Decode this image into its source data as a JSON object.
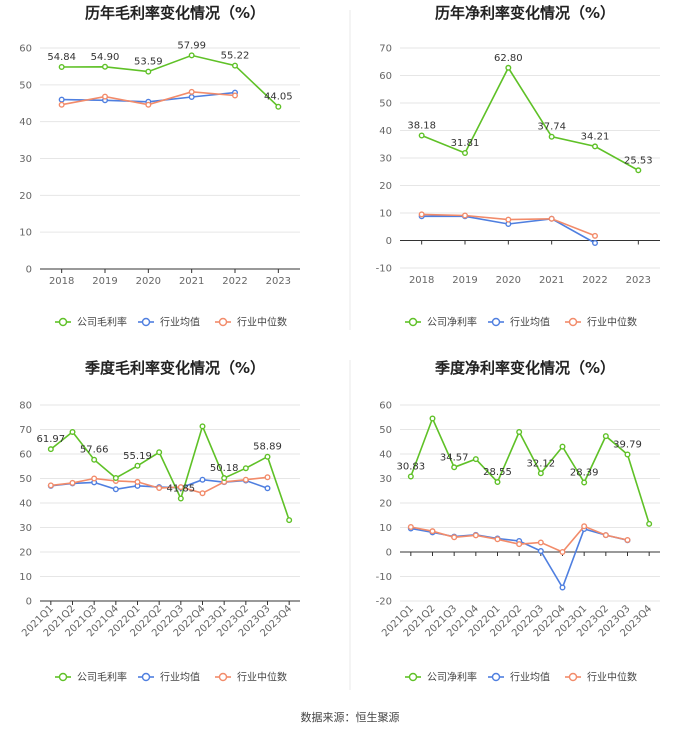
{
  "colors": {
    "company": "#5fc127",
    "avg": "#4f7fe0",
    "median": "#f28b6a"
  },
  "source": "数据来源：恒生聚源",
  "chart_data": [
    {
      "type": "line",
      "title": "历年毛利率变化情况（%）",
      "categories": [
        "2018",
        "2019",
        "2020",
        "2021",
        "2022",
        "2023"
      ],
      "ylim": [
        0,
        60
      ],
      "yticks": [
        0,
        10,
        20,
        30,
        40,
        50,
        60
      ],
      "grid": true,
      "legend": "bottom",
      "series": [
        {
          "name": "公司毛利率",
          "color": "#5fc127",
          "values": [
            54.84,
            54.9,
            53.59,
            57.99,
            55.22,
            44.05
          ],
          "labels": [
            "54.84",
            "54.90",
            "53.59",
            "57.99",
            "55.22",
            "44.05"
          ]
        },
        {
          "name": "行业均值",
          "color": "#4f7fe0",
          "values": [
            46.0,
            45.8,
            45.4,
            46.7,
            47.9,
            null
          ]
        },
        {
          "name": "行业中位数",
          "color": "#f28b6a",
          "values": [
            44.6,
            46.8,
            44.6,
            48.1,
            47.1,
            null
          ]
        }
      ]
    },
    {
      "type": "line",
      "title": "历年净利率变化情况（%）",
      "categories": [
        "2018",
        "2019",
        "2020",
        "2021",
        "2022",
        "2023"
      ],
      "ylim": [
        -10,
        70
      ],
      "yticks": [
        -10,
        0,
        10,
        20,
        30,
        40,
        50,
        60,
        70
      ],
      "grid": true,
      "legend": "bottom",
      "series": [
        {
          "name": "公司净利率",
          "color": "#5fc127",
          "values": [
            38.18,
            31.81,
            62.8,
            37.74,
            34.21,
            25.53
          ],
          "labels": [
            "38.18",
            "31.81",
            "62.80",
            "37.74",
            "34.21",
            "25.53"
          ]
        },
        {
          "name": "行业均值",
          "color": "#4f7fe0",
          "values": [
            8.8,
            8.8,
            6.0,
            7.9,
            -0.9,
            null
          ]
        },
        {
          "name": "行业中位数",
          "color": "#f28b6a",
          "values": [
            9.5,
            9.1,
            7.6,
            7.9,
            1.7,
            null
          ]
        }
      ]
    },
    {
      "type": "line",
      "title": "季度毛利率变化情况（%）",
      "categories": [
        "2021Q1",
        "2021Q2",
        "2021Q3",
        "2021Q4",
        "2022Q1",
        "2022Q2",
        "2022Q3",
        "2022Q4",
        "2023Q1",
        "2023Q2",
        "2023Q3",
        "2023Q4"
      ],
      "ylim": [
        0,
        80
      ],
      "yticks": [
        0,
        10,
        20,
        30,
        40,
        50,
        60,
        70,
        80
      ],
      "grid": true,
      "legend": "bottom",
      "series": [
        {
          "name": "公司毛利率",
          "color": "#5fc127",
          "values": [
            61.97,
            69.0,
            57.66,
            50.2,
            55.19,
            60.7,
            41.85,
            71.3,
            50.18,
            54.2,
            58.89,
            33.0
          ],
          "labels": [
            "61.97",
            "",
            "57.66",
            "",
            "55.19",
            "",
            "41.85",
            "",
            "50.18",
            "",
            "58.89",
            ""
          ]
        },
        {
          "name": "行业均值",
          "color": "#4f7fe0",
          "values": [
            47.0,
            48.0,
            48.4,
            45.6,
            47.0,
            46.5,
            46.2,
            49.5,
            48.5,
            49.2,
            46.0,
            null
          ]
        },
        {
          "name": "行业中位数",
          "color": "#f28b6a",
          "values": [
            47.2,
            48.2,
            50.0,
            49.0,
            48.6,
            46.1,
            46.5,
            44.0,
            48.6,
            49.5,
            50.5,
            null
          ]
        }
      ]
    },
    {
      "type": "line",
      "title": "季度净利率变化情况（%）",
      "categories": [
        "2021Q1",
        "2021Q2",
        "2021Q3",
        "2021Q4",
        "2022Q1",
        "2022Q2",
        "2022Q3",
        "2022Q4",
        "2023Q1",
        "2023Q2",
        "2023Q3",
        "2023Q4"
      ],
      "ylim": [
        -20,
        60
      ],
      "yticks": [
        -20,
        -10,
        0,
        10,
        20,
        30,
        40,
        50,
        60
      ],
      "grid": true,
      "legend": "bottom",
      "series": [
        {
          "name": "公司净利率",
          "color": "#5fc127",
          "values": [
            30.83,
            54.5,
            34.57,
            37.9,
            28.55,
            49.0,
            32.12,
            43.0,
            28.39,
            47.3,
            39.79,
            11.5
          ],
          "labels": [
            "30.83",
            "",
            "34.57",
            "",
            "28.55",
            "",
            "32.12",
            "",
            "28.39",
            "",
            "39.79",
            ""
          ]
        },
        {
          "name": "行业均值",
          "color": "#4f7fe0",
          "values": [
            9.6,
            8.0,
            6.3,
            7.0,
            5.5,
            4.5,
            0.4,
            -14.5,
            9.4,
            6.9,
            4.8,
            null
          ]
        },
        {
          "name": "行业中位数",
          "color": "#f28b6a",
          "values": [
            10.2,
            8.5,
            6.0,
            6.8,
            5.2,
            3.2,
            3.9,
            0.0,
            10.5,
            6.9,
            4.9,
            null
          ]
        }
      ]
    }
  ]
}
